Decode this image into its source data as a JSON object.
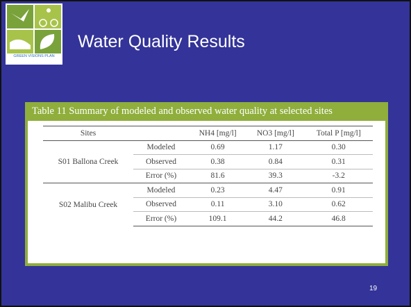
{
  "slide": {
    "title": "Water Quality Results",
    "logo_text": "GREEN VISIONS PLAN",
    "page_number": "19"
  },
  "table": {
    "caption": "Table 11 Summary of modeled and observed water quality at selected sites",
    "columns": [
      "Sites",
      "NH4 [mg/l]",
      "NO3 [mg/l]",
      "Total P [mg/l]"
    ],
    "groups": [
      {
        "site": "S01  Ballona Creek",
        "rows": [
          {
            "label": "Modeled",
            "values": [
              "0.69",
              "1.17",
              "0.30"
            ]
          },
          {
            "label": "Observed",
            "values": [
              "0.38",
              "0.84",
              "0.31"
            ]
          },
          {
            "label": "Error (%)",
            "values": [
              "81.6",
              "39.3",
              "-3.2"
            ]
          }
        ]
      },
      {
        "site": "S02 Malibu Creek",
        "rows": [
          {
            "label": "Modeled",
            "values": [
              "0.23",
              "4.47",
              "0.91"
            ]
          },
          {
            "label": "Observed",
            "values": [
              "0.11",
              "3.10",
              "0.62"
            ]
          },
          {
            "label": "Error (%)",
            "values": [
              "109.1",
              "44.2",
              "46.8"
            ]
          }
        ]
      }
    ]
  }
}
